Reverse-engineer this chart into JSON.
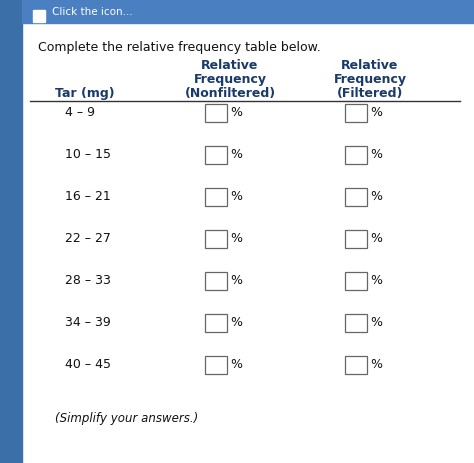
{
  "title": "Complete the relative frequency table below.",
  "col_header_row1": [
    "",
    "Relative",
    "Relative"
  ],
  "col_header_row2": [
    "",
    "Frequency",
    "Frequency"
  ],
  "col_header_row3": [
    "Tar (mg)",
    "(Nonfiltered)",
    "(Filtered)"
  ],
  "rows": [
    "4 – 9",
    "10 – 15",
    "16 – 21",
    "22 – 27",
    "28 – 33",
    "34 – 39",
    "40 – 45"
  ],
  "footer": "(Simplify your answers.)",
  "fig_bg_color": "#c8d8e8",
  "left_bar_color": "#3a6fa8",
  "top_bar_color": "#4a7fc1",
  "content_bg_color": "#f0f0f0",
  "box_color": "#ffffff",
  "box_edge": "#666666",
  "text_color": "#111111",
  "header_color": "#1a3a6a",
  "title_color": "#111111",
  "footer_color": "#111111",
  "percent_sign": "%",
  "top_bar_text": "Click the icon...",
  "icon_color": "#4a90d9"
}
